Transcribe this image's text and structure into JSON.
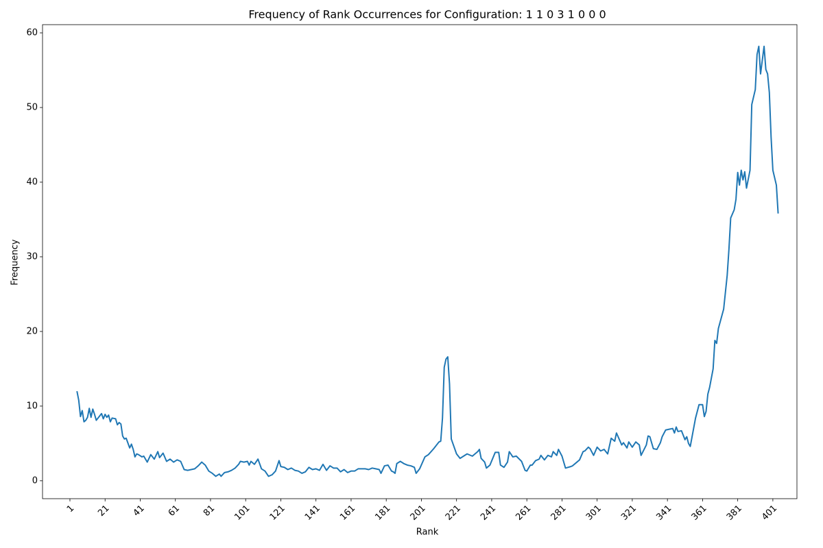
{
  "chart_data": {
    "type": "line",
    "title": "Frequency of Rank Occurrences for Configuration: 1 1 0 3 1 0 0 0",
    "x_label": "Rank",
    "y_label": "Frequency",
    "color": "#1f77b4",
    "xlim": [
      -14.6,
      414.7
    ],
    "ylim": [
      -2.4,
      61.1
    ],
    "xticks": [
      1,
      21,
      41,
      61,
      81,
      101,
      121,
      141,
      161,
      181,
      201,
      221,
      241,
      261,
      281,
      301,
      321,
      341,
      361,
      381,
      401
    ],
    "yticks": [
      0,
      10,
      20,
      30,
      40,
      50,
      60
    ],
    "x": [
      5,
      6,
      7,
      8,
      9,
      10,
      11,
      12,
      13,
      14,
      15,
      16,
      18,
      19,
      20,
      21,
      22,
      23,
      24,
      25,
      27,
      28,
      29,
      30,
      31,
      32,
      33,
      35,
      36,
      37,
      38,
      39,
      40,
      42,
      43,
      45,
      47,
      49,
      51,
      52,
      54,
      56,
      58,
      60,
      62,
      64,
      66,
      68,
      70,
      72,
      74,
      76,
      78,
      80,
      82,
      84,
      86,
      87,
      89,
      91,
      93,
      95,
      97,
      98,
      100,
      102,
      103,
      104,
      106,
      108,
      110,
      112,
      114,
      116,
      118,
      120,
      121,
      123,
      125,
      127,
      129,
      131,
      133,
      135,
      137,
      139,
      141,
      143,
      145,
      147,
      149,
      151,
      153,
      155,
      157,
      159,
      161,
      163,
      165,
      167,
      169,
      171,
      173,
      175,
      177,
      178,
      180,
      182,
      184,
      185,
      186,
      187,
      189,
      191,
      193,
      195,
      197,
      198,
      200,
      203,
      205,
      208,
      211,
      212,
      213,
      214,
      215,
      216,
      217,
      218,
      221,
      223,
      225,
      227,
      230,
      233,
      234,
      235,
      237,
      238,
      240,
      243,
      245,
      246,
      248,
      250,
      251,
      253,
      255,
      258,
      260,
      261,
      263,
      264,
      266,
      268,
      269,
      271,
      273,
      275,
      276,
      278,
      279,
      281,
      283,
      286,
      287,
      289,
      291,
      293,
      294,
      296,
      297,
      299,
      301,
      303,
      305,
      307,
      309,
      311,
      312,
      315,
      316,
      318,
      319,
      321,
      323,
      325,
      326,
      329,
      330,
      331,
      333,
      335,
      337,
      338,
      340,
      342,
      344,
      345,
      346,
      347,
      349,
      351,
      352,
      353,
      354,
      357,
      359,
      361,
      362,
      363,
      364,
      365,
      367,
      368,
      369,
      370,
      373,
      375,
      376,
      377,
      379,
      380,
      381,
      382,
      383,
      384,
      385,
      386,
      388,
      389,
      391,
      392,
      393,
      394,
      396,
      397,
      398,
      399,
      400,
      401,
      403,
      404
    ],
    "values": [
      12,
      10.8,
      8.6,
      9.4,
      7.9,
      8.1,
      8.5,
      9.7,
      8.5,
      9.6,
      8.9,
      8.1,
      8.7,
      9.0,
      8.3,
      8.9,
      8.5,
      8.8,
      7.9,
      8.4,
      8.3,
      7.5,
      7.8,
      7.6,
      6.0,
      5.6,
      5.7,
      4.4,
      4.9,
      4.2,
      3.2,
      3.6,
      3.5,
      3.2,
      3.3,
      2.5,
      3.5,
      2.9,
      3.9,
      3.1,
      3.7,
      2.6,
      2.9,
      2.5,
      2.8,
      2.6,
      1.5,
      1.4,
      1.5,
      1.6,
      2.0,
      2.5,
      2.1,
      1.3,
      1.0,
      0.6,
      0.9,
      0.6,
      1.1,
      1.2,
      1.4,
      1.7,
      2.2,
      2.6,
      2.5,
      2.6,
      2.1,
      2.6,
      2.2,
      2.9,
      1.6,
      1.3,
      0.6,
      0.8,
      1.3,
      2.7,
      1.9,
      1.8,
      1.5,
      1.7,
      1.4,
      1.3,
      1.0,
      1.2,
      1.8,
      1.5,
      1.6,
      1.4,
      2.2,
      1.4,
      2.0,
      1.7,
      1.7,
      1.2,
      1.5,
      1.1,
      1.3,
      1.3,
      1.6,
      1.6,
      1.6,
      1.5,
      1.7,
      1.6,
      1.5,
      1.0,
      2.0,
      2.1,
      1.3,
      1.2,
      1.0,
      2.3,
      2.6,
      2.3,
      2.1,
      2.0,
      1.8,
      1.0,
      1.6,
      3.2,
      3.5,
      4.3,
      5.2,
      5.3,
      8.4,
      15.2,
      16.3,
      16.6,
      13.0,
      5.6,
      3.6,
      3.0,
      3.3,
      3.6,
      3.3,
      3.9,
      4.2,
      3.0,
      2.5,
      1.7,
      2.1,
      3.8,
      3.8,
      2.1,
      1.8,
      2.5,
      3.9,
      3.2,
      3.3,
      2.6,
      1.4,
      1.3,
      2.1,
      2.1,
      2.7,
      2.9,
      3.4,
      2.8,
      3.4,
      3.2,
      3.9,
      3.4,
      4.2,
      3.3,
      1.7,
      1.9,
      2.0,
      2.4,
      2.8,
      3.9,
      4.0,
      4.5,
      4.3,
      3.4,
      4.5,
      4.0,
      4.2,
      3.6,
      5.7,
      5.3,
      6.4,
      4.8,
      5.1,
      4.4,
      5.2,
      4.5,
      5.2,
      4.8,
      3.4,
      4.8,
      6.0,
      5.9,
      4.3,
      4.2,
      5.1,
      5.9,
      6.8,
      6.9,
      7.0,
      6.4,
      7.2,
      6.6,
      6.7,
      5.5,
      5.9,
      5.0,
      4.6,
      8.4,
      10.2,
      10.2,
      8.6,
      9.3,
      11.6,
      12.5,
      15,
      18.8,
      18.4,
      20.4,
      23,
      27.5,
      31,
      35.2,
      36.3,
      37.7,
      41.3,
      39.6,
      41.6,
      40.3,
      41.4,
      39.2,
      41.6,
      50.4,
      52.4,
      57.1,
      58.2,
      54.5,
      58.2,
      55.1,
      54.5,
      52.0,
      46,
      41.6,
      39.6,
      35.8
    ]
  }
}
